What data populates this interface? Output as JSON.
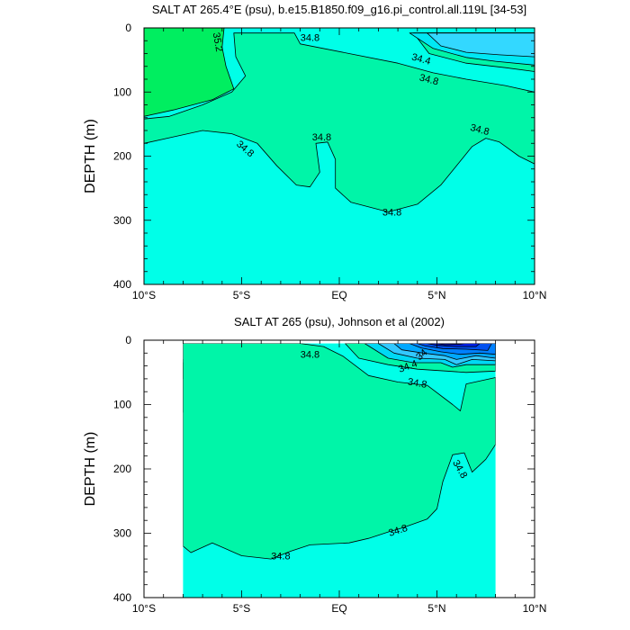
{
  "chart_data": [
    {
      "type": "contour",
      "title": "SALT AT 265.4°E (psu), b.e15.B1850.f09_g16.pi_control.all.119L [34-53]",
      "ylabel": "DEPTH (m)",
      "xlabel": "",
      "xlim": [
        -10,
        10
      ],
      "ylim": [
        400,
        0
      ],
      "x_ticks": [
        -10,
        -5,
        0,
        5,
        10
      ],
      "x_tick_labels": [
        "10°S",
        "5°S",
        "EQ",
        "5°N",
        "10°N"
      ],
      "y_ticks": [
        0,
        100,
        200,
        300,
        400
      ],
      "y_tick_labels": [
        "0",
        "100",
        "200",
        "300",
        "400"
      ],
      "data_x_range": [
        -10,
        10
      ],
      "contour_labels": [
        "35.2",
        "34.8",
        "34.4",
        "34.8",
        "34.8",
        "34.8",
        "34.8",
        "34.8"
      ],
      "fill_colors": {
        "35.6": "#ffe000",
        "35.4": "#a8f000",
        "35.2": "#3ee000",
        "35.0": "#00ee60",
        "34.8": "#00f5a8",
        "below": "#00ffe8",
        "34.4": "#00e8f4",
        "34.2": "#33d8ff",
        "34.0": "#00c8ff"
      },
      "contours": [
        {
          "level": 35.6,
          "points": [
            [
              -10,
              75
            ],
            [
              -9.7,
              70
            ],
            [
              -9.6,
              40
            ],
            [
              -9.6,
              0
            ],
            [
              -10,
              0
            ]
          ]
        },
        {
          "level": 35.4,
          "points": [
            [
              -10,
              100
            ],
            [
              -9.2,
              92
            ],
            [
              -8.4,
              75
            ],
            [
              -8.2,
              40
            ],
            [
              -8.2,
              0
            ],
            [
              -10,
              0
            ]
          ]
        },
        {
          "level": 35.2,
          "points": [
            [
              -10,
              120
            ],
            [
              -8.5,
              115
            ],
            [
              -7.0,
              95
            ],
            [
              -6.3,
              70
            ],
            [
              -6.2,
              30
            ],
            [
              -6.2,
              0
            ],
            [
              -10,
              0
            ]
          ]
        },
        {
          "level": 35.0,
          "points": [
            [
              -10,
              138
            ],
            [
              -8.5,
              128
            ],
            [
              -6.5,
              112
            ],
            [
              -5.4,
              95
            ],
            [
              -5.8,
              60
            ],
            [
              -6.0,
              30
            ],
            [
              -5.9,
              0
            ],
            [
              -10,
              0
            ]
          ]
        },
        {
          "level": 34.8,
          "points": [
            [
              -10,
              180
            ],
            [
              -8.5,
              170
            ],
            [
              -7,
              160
            ],
            [
              -5.5,
              165
            ],
            [
              -4.2,
              180
            ],
            [
              -3.2,
              215
            ],
            [
              -2.2,
              245
            ],
            [
              -1.5,
              248
            ],
            [
              -1.0,
              225
            ],
            [
              -1.2,
              180
            ],
            [
              -0.6,
              178
            ],
            [
              -0.2,
              205
            ],
            [
              -0.2,
              250
            ],
            [
              0.6,
              272
            ],
            [
              2.5,
              287
            ],
            [
              4.0,
              275
            ],
            [
              5.2,
              245
            ],
            [
              6.0,
              215
            ],
            [
              6.8,
              185
            ],
            [
              7.5,
              172
            ],
            [
              8.2,
              178
            ],
            [
              9.2,
              200
            ],
            [
              10,
              212
            ],
            [
              10,
              100
            ],
            [
              8.5,
              90
            ],
            [
              6.5,
              80
            ],
            [
              4.8,
              70
            ],
            [
              3.0,
              55
            ],
            [
              0.5,
              40
            ],
            [
              -2.0,
              25
            ],
            [
              -2.3,
              8
            ],
            [
              -5.4,
              8
            ],
            [
              -5.3,
              45
            ],
            [
              -4.8,
              75
            ],
            [
              -5.5,
              100
            ],
            [
              -7.0,
              120
            ],
            [
              -8.7,
              138
            ],
            [
              -10,
              142
            ]
          ]
        },
        {
          "level": 34.6,
          "points": [
            [
              10,
              68
            ],
            [
              8.5,
              62
            ],
            [
              6.5,
              55
            ],
            [
              4.6,
              40
            ],
            [
              3.8,
              8
            ],
            [
              10,
              8
            ]
          ]
        },
        {
          "level": 34.4,
          "points": [
            [
              10,
              58
            ],
            [
              8,
              52
            ],
            [
              6.5,
              46
            ],
            [
              4.8,
              32
            ],
            [
              3.6,
              8
            ],
            [
              10,
              8
            ]
          ]
        },
        {
          "level": 34.2,
          "points": [
            [
              10,
              45
            ],
            [
              8.2,
              42
            ],
            [
              6.5,
              38
            ],
            [
              5.2,
              28
            ],
            [
              4.5,
              8
            ],
            [
              10,
              8
            ]
          ]
        }
      ]
    },
    {
      "type": "contour",
      "title": "SALT AT 265 (psu), Johnson et al (2002)",
      "ylabel": "DEPTH (m)",
      "xlabel": "",
      "xlim": [
        -10,
        10
      ],
      "ylim": [
        400,
        0
      ],
      "x_ticks": [
        -10,
        -5,
        0,
        5,
        10
      ],
      "x_tick_labels": [
        "10°S",
        "5°S",
        "EQ",
        "5°N",
        "10°N"
      ],
      "y_ticks": [
        0,
        100,
        200,
        300,
        400
      ],
      "y_tick_labels": [
        "0",
        "100",
        "200",
        "300",
        "400"
      ],
      "data_x_range": [
        -8,
        8
      ],
      "data_y_range": [
        5,
        400
      ],
      "contour_labels": [
        "34.8",
        "34",
        "34.4",
        "34.8",
        "34.8",
        "34.8",
        "34.8"
      ],
      "fill_colors": {
        "35.2": "#00ee44",
        "35.0": "#00f590",
        "34.8": "#00f5a8",
        "below": "#00ffe8",
        "34.4": "#00d8f4",
        "34.2": "#33c8ff",
        "34.0": "#00a8ff",
        "33.8": "#0080ff",
        "33.6": "#0050f0",
        "33.4": "#0020e0",
        "33.2": "#1010c0"
      },
      "contours": [
        {
          "level": 35.2,
          "points": [
            [
              -8,
              35
            ],
            [
              -7,
              35
            ],
            [
              -6.6,
              45
            ],
            [
              -7,
              58
            ],
            [
              -8,
              60
            ]
          ]
        },
        {
          "level": 35.0,
          "points": [
            [
              -8,
              30
            ],
            [
              -7,
              33
            ],
            [
              -5,
              42
            ],
            [
              -3,
              50
            ],
            [
              -0.8,
              58
            ],
            [
              -0.3,
              70
            ],
            [
              -0.7,
              88
            ],
            [
              -2,
              100
            ],
            [
              -5,
              108
            ],
            [
              -8,
              112
            ]
          ]
        },
        {
          "level": 34.8,
          "points": [
            [
              -8,
              320
            ],
            [
              -7.6,
              330
            ],
            [
              -6.5,
              315
            ],
            [
              -5,
              335
            ],
            [
              -3.5,
              340
            ],
            [
              -2.5,
              328
            ],
            [
              -1.5,
              318
            ],
            [
              0.5,
              315
            ],
            [
              1.5,
              308
            ],
            [
              2.5,
              298
            ],
            [
              3.2,
              292
            ],
            [
              4.5,
              278
            ],
            [
              5.0,
              262
            ],
            [
              5.3,
              220
            ],
            [
              5.8,
              178
            ],
            [
              6.4,
              175
            ],
            [
              6.8,
              205
            ],
            [
              7.5,
              185
            ],
            [
              8,
              162
            ],
            [
              8,
              58
            ],
            [
              6.5,
              68
            ],
            [
              6.2,
              110
            ],
            [
              5.8,
              100
            ],
            [
              4.5,
              70
            ],
            [
              3.0,
              65
            ],
            [
              1.5,
              55
            ],
            [
              0.2,
              25
            ],
            [
              -0.8,
              10
            ],
            [
              -2.0,
              5
            ],
            [
              -8,
              5
            ]
          ]
        },
        {
          "level": 34.6,
          "points": [
            [
              8,
              48
            ],
            [
              6.5,
              50
            ],
            [
              5.5,
              48
            ],
            [
              4.0,
              45
            ],
            [
              2.5,
              38
            ],
            [
              1.0,
              28
            ],
            [
              0.3,
              5
            ],
            [
              8,
              5
            ]
          ]
        },
        {
          "level": 34.4,
          "points": [
            [
              8,
              38
            ],
            [
              6.5,
              38
            ],
            [
              5.8,
              42
            ],
            [
              5.2,
              35
            ],
            [
              3.8,
              35
            ],
            [
              2.5,
              28
            ],
            [
              1.3,
              5
            ],
            [
              8,
              5
            ]
          ]
        },
        {
          "level": 34.2,
          "points": [
            [
              8,
              32
            ],
            [
              6.8,
              30
            ],
            [
              6.0,
              38
            ],
            [
              5.4,
              30
            ],
            [
              4.0,
              28
            ],
            [
              2.8,
              20
            ],
            [
              2.0,
              5
            ],
            [
              8,
              5
            ]
          ]
        },
        {
          "level": 34.0,
          "points": [
            [
              8,
              28
            ],
            [
              7.0,
              24
            ],
            [
              6.0,
              30
            ],
            [
              5.4,
              24
            ],
            [
              4.3,
              20
            ],
            [
              3.2,
              15
            ],
            [
              2.8,
              5
            ],
            [
              8,
              5
            ]
          ]
        },
        {
          "level": 33.8,
          "points": [
            [
              8,
              22
            ],
            [
              7.2,
              20
            ],
            [
              6.2,
              22
            ],
            [
              5.2,
              18
            ],
            [
              4.2,
              12
            ],
            [
              3.6,
              5
            ],
            [
              8,
              5
            ]
          ]
        },
        {
          "level": 33.6,
          "points": [
            [
              7.6,
              16
            ],
            [
              6.5,
              14
            ],
            [
              5.3,
              13
            ],
            [
              4.4,
              9
            ],
            [
              4.0,
              5
            ],
            [
              7.8,
              5
            ]
          ]
        },
        {
          "level": 33.4,
          "points": [
            [
              7.0,
              10
            ],
            [
              6.0,
              10
            ],
            [
              5.0,
              8
            ],
            [
              4.5,
              5
            ],
            [
              7.2,
              5
            ]
          ]
        },
        {
          "level": 33.2,
          "points": [
            [
              6.2,
              6
            ],
            [
              5.4,
              7
            ],
            [
              5.0,
              5
            ],
            [
              6.4,
              5
            ]
          ]
        }
      ]
    }
  ]
}
